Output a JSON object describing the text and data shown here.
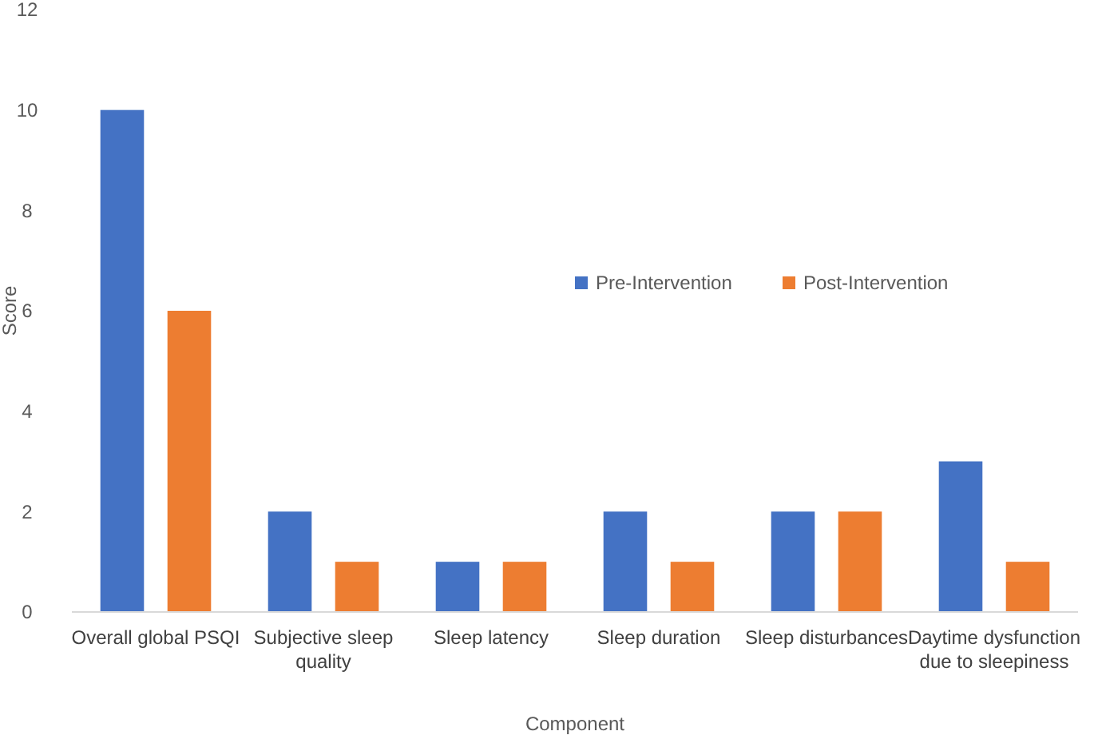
{
  "chart_data": {
    "type": "bar",
    "xlabel": "Component",
    "ylabel": "Score",
    "categories": [
      "Overall global PSQI",
      "Subjective sleep quality",
      "Sleep latency",
      "Sleep duration",
      "Sleep disturbances",
      "Daytime dysfunction due to sleepiness"
    ],
    "series": [
      {
        "name": "Pre-Intervention",
        "color": "#4472c4",
        "values": [
          10,
          2,
          1,
          2,
          2,
          3
        ]
      },
      {
        "name": "Post-Intervention",
        "color": "#ed7d31",
        "values": [
          6,
          1,
          1,
          1,
          2,
          1
        ]
      }
    ],
    "ylim": [
      0,
      12
    ],
    "yticks": [
      0,
      2,
      4,
      6,
      8,
      10,
      12
    ],
    "legend": "right",
    "grid": false
  }
}
